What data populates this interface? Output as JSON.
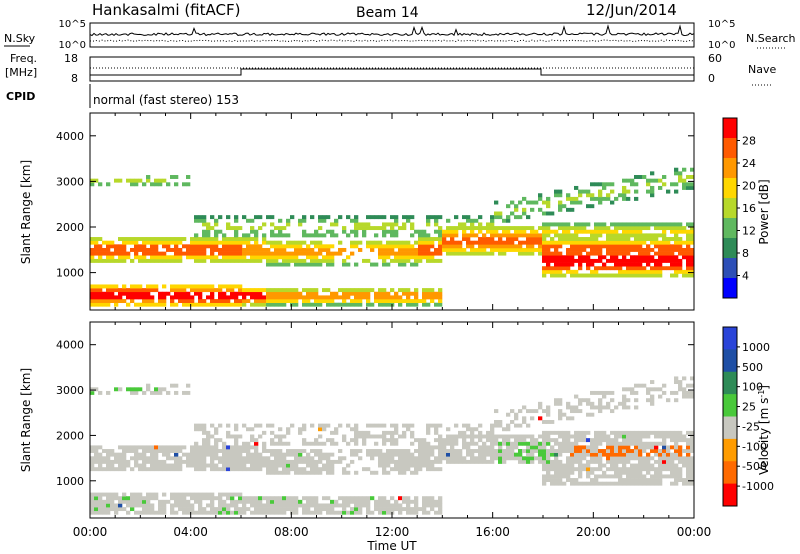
{
  "header": {
    "station": "Hankasalmi (fitACF)",
    "beam": "Beam 14",
    "date": "12/Jun/2014"
  },
  "aux_panels": {
    "nsky_label": "N.Sky",
    "nsearch_label": "N.Search",
    "noise_ticks_left": [
      "10^5",
      "10^0"
    ],
    "noise_ticks_right": [
      "10^5",
      "10^0"
    ],
    "freq_label": "Freq.",
    "freq_unit": "[MHz]",
    "freq_ticks": [
      "18",
      "8"
    ],
    "nave_label": "Nave",
    "nave_ticks": [
      "60",
      "0"
    ],
    "cpid_label": "CPID",
    "cpid_text": "normal (fast stereo) 153"
  },
  "colors": {
    "power": [
      "#0000ff",
      "#2d4fb7",
      "#2e8b57",
      "#5fb85f",
      "#b7d82a",
      "#ffd700",
      "#ff9800",
      "#ff5a00",
      "#ff0000"
    ],
    "velocity": [
      "#2a44d8",
      "#1f4fa5",
      "#2e8b57",
      "#49c93a",
      "#c8c8c0",
      "#ff9c00",
      "#ff6a00",
      "#ff0000"
    ],
    "ground_scatter": "#c8c8c0"
  },
  "chart_data": [
    {
      "type": "heatmap",
      "title": "",
      "xlabel": "",
      "ylabel": "Slant Range [km]",
      "ylim": [
        180,
        4500
      ],
      "xlim": [
        "00:00",
        "24:00"
      ],
      "yticks": [
        "1000",
        "2000",
        "3000",
        "4000"
      ],
      "colorbar": {
        "label": "Power [dB]",
        "ticks": [
          "28",
          "24",
          "20",
          "16",
          "12",
          "8",
          "4"
        ]
      }
    },
    {
      "type": "heatmap",
      "title": "",
      "xlabel": "Time UT",
      "ylabel": "Slant Range [km]",
      "ylim": [
        180,
        4500
      ],
      "xlim": [
        "00:00",
        "24:00"
      ],
      "xticks": [
        "00:00",
        "04:00",
        "08:00",
        "12:00",
        "16:00",
        "20:00",
        "00:00"
      ],
      "yticks": [
        "1000",
        "2000",
        "3000",
        "4000"
      ],
      "colorbar": {
        "label": "Velocity [m s",
        "label_sup": "-1",
        "label_end": "]",
        "ticks": [
          "1000",
          "500",
          "100",
          "25",
          "-25",
          "-100",
          "-500",
          "-1000"
        ]
      }
    }
  ]
}
